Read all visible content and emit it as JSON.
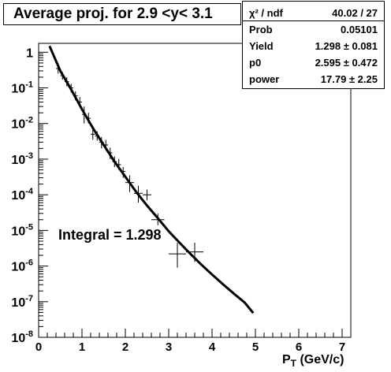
{
  "title": "Average proj. for 2.9 <y< 3.1",
  "stats": [
    {
      "label": "χ² / ndf",
      "value": "40.02 / 27"
    },
    {
      "label": "Prob",
      "value": "0.05101"
    },
    {
      "label": "Yield",
      "value": "1.298 ± 0.081"
    },
    {
      "label": "p0",
      "value": "2.595 ± 0.472"
    },
    {
      "label": "power",
      "value": "17.79 ± 2.25"
    }
  ],
  "annotation": "Integral = 1.298",
  "chart_data": {
    "type": "scatter",
    "title": "Average proj. for 2.9 <y< 3.1",
    "xlabel": "P_T (GeV/c)",
    "xlabel_main": "P",
    "xlabel_sub": "T",
    "xlabel_rest": " (GeV/c)",
    "ylabel": "",
    "xlim": [
      0,
      7.2
    ],
    "ylim_log10": [
      -8,
      0.25
    ],
    "log_y": true,
    "x_ticks": [
      0,
      1,
      2,
      3,
      4,
      5,
      6,
      7
    ],
    "x_tick_labels": [
      "0",
      "1",
      "2",
      "3",
      "4",
      "5",
      "6",
      "7"
    ],
    "y_ticks": [
      1,
      0.1,
      0.01,
      0.001,
      0.0001,
      1e-05,
      1e-06,
      1e-07,
      1e-08
    ],
    "y_tick_labels": [
      {
        "base": "1",
        "exp": ""
      },
      {
        "base": "10",
        "exp": "-1"
      },
      {
        "base": "10",
        "exp": "-2"
      },
      {
        "base": "10",
        "exp": "-3"
      },
      {
        "base": "10",
        "exp": "-4"
      },
      {
        "base": "10",
        "exp": "-5"
      },
      {
        "base": "10",
        "exp": "-6"
      },
      {
        "base": "10",
        "exp": "-7"
      },
      {
        "base": "10",
        "exp": "-8"
      }
    ],
    "series": [
      {
        "points": [
          {
            "x": 0.45,
            "y": 0.35,
            "xerr": 0.05,
            "ylo": 0.25,
            "yhi": 0.5
          },
          {
            "x": 0.55,
            "y": 0.22,
            "xerr": 0.05,
            "ylo": 0.17,
            "yhi": 0.28
          },
          {
            "x": 0.65,
            "y": 0.15,
            "xerr": 0.05,
            "ylo": 0.11,
            "yhi": 0.2
          },
          {
            "x": 0.75,
            "y": 0.1,
            "xerr": 0.05,
            "ylo": 0.075,
            "yhi": 0.13
          },
          {
            "x": 0.85,
            "y": 0.06,
            "xerr": 0.05,
            "ylo": 0.045,
            "yhi": 0.08
          },
          {
            "x": 0.95,
            "y": 0.04,
            "xerr": 0.05,
            "ylo": 0.028,
            "yhi": 0.055
          },
          {
            "x": 1.05,
            "y": 0.018,
            "xerr": 0.05,
            "ylo": 0.01,
            "yhi": 0.03
          },
          {
            "x": 1.15,
            "y": 0.014,
            "xerr": 0.05,
            "ylo": 0.01,
            "yhi": 0.02
          },
          {
            "x": 1.25,
            "y": 0.005,
            "xerr": 0.05,
            "ylo": 0.0035,
            "yhi": 0.0068
          },
          {
            "x": 1.35,
            "y": 0.0045,
            "xerr": 0.05,
            "ylo": 0.0033,
            "yhi": 0.006
          },
          {
            "x": 1.45,
            "y": 0.003,
            "xerr": 0.05,
            "ylo": 0.002,
            "yhi": 0.0042
          },
          {
            "x": 1.55,
            "y": 0.0025,
            "xerr": 0.05,
            "ylo": 0.0018,
            "yhi": 0.0035
          },
          {
            "x": 1.65,
            "y": 0.0015,
            "xerr": 0.05,
            "ylo": 0.001,
            "yhi": 0.0021
          },
          {
            "x": 1.75,
            "y": 0.00085,
            "xerr": 0.05,
            "ylo": 0.0006,
            "yhi": 0.0012
          },
          {
            "x": 1.85,
            "y": 0.0007,
            "xerr": 0.05,
            "ylo": 0.0005,
            "yhi": 0.001
          },
          {
            "x": 1.95,
            "y": 0.00045,
            "xerr": 0.05,
            "ylo": 0.0003,
            "yhi": 0.0006
          },
          {
            "x": 2.1,
            "y": 0.00022,
            "xerr": 0.1,
            "ylo": 0.00012,
            "yhi": 0.00035
          },
          {
            "x": 2.3,
            "y": 0.00011,
            "xerr": 0.1,
            "ylo": 6e-05,
            "yhi": 0.00018
          },
          {
            "x": 2.5,
            "y": 0.0001,
            "xerr": 0.1,
            "ylo": 7e-05,
            "yhi": 0.00014
          },
          {
            "x": 2.75,
            "y": 2e-05,
            "xerr": 0.15,
            "ylo": 1.4e-05,
            "yhi": 3e-05
          },
          {
            "x": 3.2,
            "y": 2.2e-06,
            "xerr": 0.2,
            "ylo": 9e-07,
            "yhi": 4.5e-06
          },
          {
            "x": 3.6,
            "y": 2.5e-06,
            "xerr": 0.2,
            "ylo": 1.3e-06,
            "yhi": 4.5e-06
          }
        ]
      }
    ],
    "fit": {
      "function": "power-law",
      "x_range": [
        0.25,
        4.95
      ],
      "curve": [
        {
          "x": 0.25,
          "y": 1.5
        },
        {
          "x": 0.5,
          "y": 0.3
        },
        {
          "x": 0.75,
          "y": 0.09
        },
        {
          "x": 1.0,
          "y": 0.025
        },
        {
          "x": 1.25,
          "y": 0.0075
        },
        {
          "x": 1.5,
          "y": 0.0025
        },
        {
          "x": 1.75,
          "y": 0.00085
        },
        {
          "x": 2.0,
          "y": 0.00032
        },
        {
          "x": 2.25,
          "y": 0.00012
        },
        {
          "x": 2.5,
          "y": 5e-05
        },
        {
          "x": 2.75,
          "y": 2.2e-05
        },
        {
          "x": 3.0,
          "y": 9.5e-06
        },
        {
          "x": 3.25,
          "y": 4.5e-06
        },
        {
          "x": 3.5,
          "y": 2.2e-06
        },
        {
          "x": 3.75,
          "y": 1.1e-06
        },
        {
          "x": 4.0,
          "y": 5.8e-07
        },
        {
          "x": 4.25,
          "y": 3.1e-07
        },
        {
          "x": 4.5,
          "y": 1.7e-07
        },
        {
          "x": 4.75,
          "y": 9.5e-08
        },
        {
          "x": 4.95,
          "y": 4.8e-08
        }
      ]
    }
  }
}
